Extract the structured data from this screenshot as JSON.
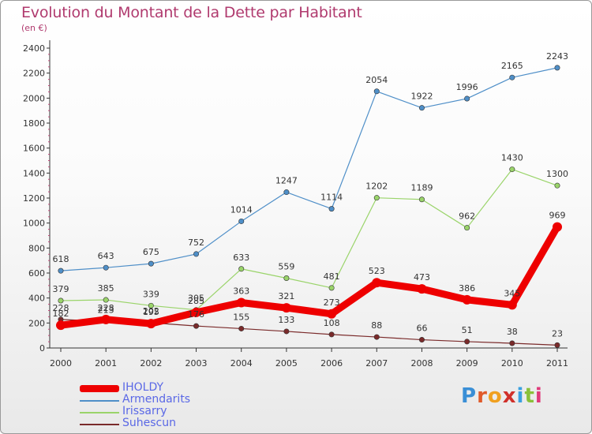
{
  "title": "Evolution du Montant de la Dette par Habitant",
  "subtitle": "(en €)",
  "brand": "Proxiti",
  "chart_data": {
    "type": "line",
    "categories": [
      "2000",
      "2001",
      "2002",
      "2003",
      "2004",
      "2005",
      "2006",
      "2007",
      "2008",
      "2009",
      "2010",
      "2011"
    ],
    "ylim": [
      0,
      2400
    ],
    "yticks": [
      0,
      200,
      400,
      600,
      800,
      1000,
      1200,
      1400,
      1600,
      1800,
      2000,
      2200,
      2400
    ],
    "grid": false,
    "legend_position": "bottom-left",
    "series": [
      {
        "name": "IHOLDY",
        "color": "#ee0000",
        "values": [
          182,
          228,
          195,
          285,
          363,
          321,
          273,
          523,
          473,
          386,
          345,
          969
        ],
        "bold": true
      },
      {
        "name": "Armendarits",
        "color": "#4f8fc8",
        "values": [
          618,
          643,
          675,
          752,
          1014,
          1247,
          1114,
          2054,
          1922,
          1996,
          2165,
          2243
        ]
      },
      {
        "name": "Irissarry",
        "color": "#9ad46a",
        "values": [
          379,
          385,
          339,
          305,
          633,
          559,
          481,
          1202,
          1189,
          962,
          1430,
          1300
        ]
      },
      {
        "name": "Suhescun",
        "color": "#7a2a2a",
        "values": [
          228,
          213,
          202,
          176,
          155,
          133,
          108,
          88,
          66,
          51,
          38,
          23
        ]
      }
    ]
  }
}
